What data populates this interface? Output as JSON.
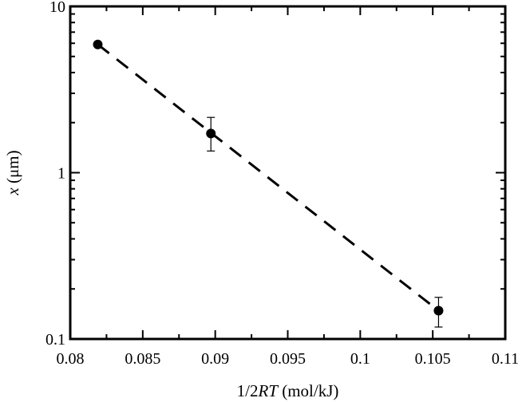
{
  "chart_data": {
    "type": "scatter",
    "title": "",
    "xlabel_parts": [
      "1/2",
      "RT",
      " (mol/kJ)"
    ],
    "ylabel_parts": [
      "x",
      " (μm)"
    ],
    "xlim": [
      0.08,
      0.11
    ],
    "ylim": [
      0.1,
      10
    ],
    "yscale": "log",
    "grid": false,
    "x_ticks": [
      0.08,
      0.085,
      0.09,
      0.095,
      0.1,
      0.105,
      0.11
    ],
    "x_tick_labels": [
      "0.08",
      "0.085",
      "0.09",
      "0.095",
      "0.1",
      "0.105",
      "0.11"
    ],
    "y_ticks": [
      0.1,
      1,
      10
    ],
    "y_tick_labels": [
      "0.1",
      "1",
      "10"
    ],
    "series": [
      {
        "x": [
          0.0819,
          0.0897,
          0.1054
        ],
        "y": [
          5.9,
          1.72,
          0.148
        ],
        "y_err_low": [
          null,
          1.35,
          0.118
        ],
        "y_err_high": [
          null,
          2.15,
          0.178
        ]
      }
    ],
    "fit_line": {
      "style": "dashed",
      "x": [
        0.0819,
        0.1054
      ],
      "y": [
        5.9,
        0.148
      ]
    }
  }
}
